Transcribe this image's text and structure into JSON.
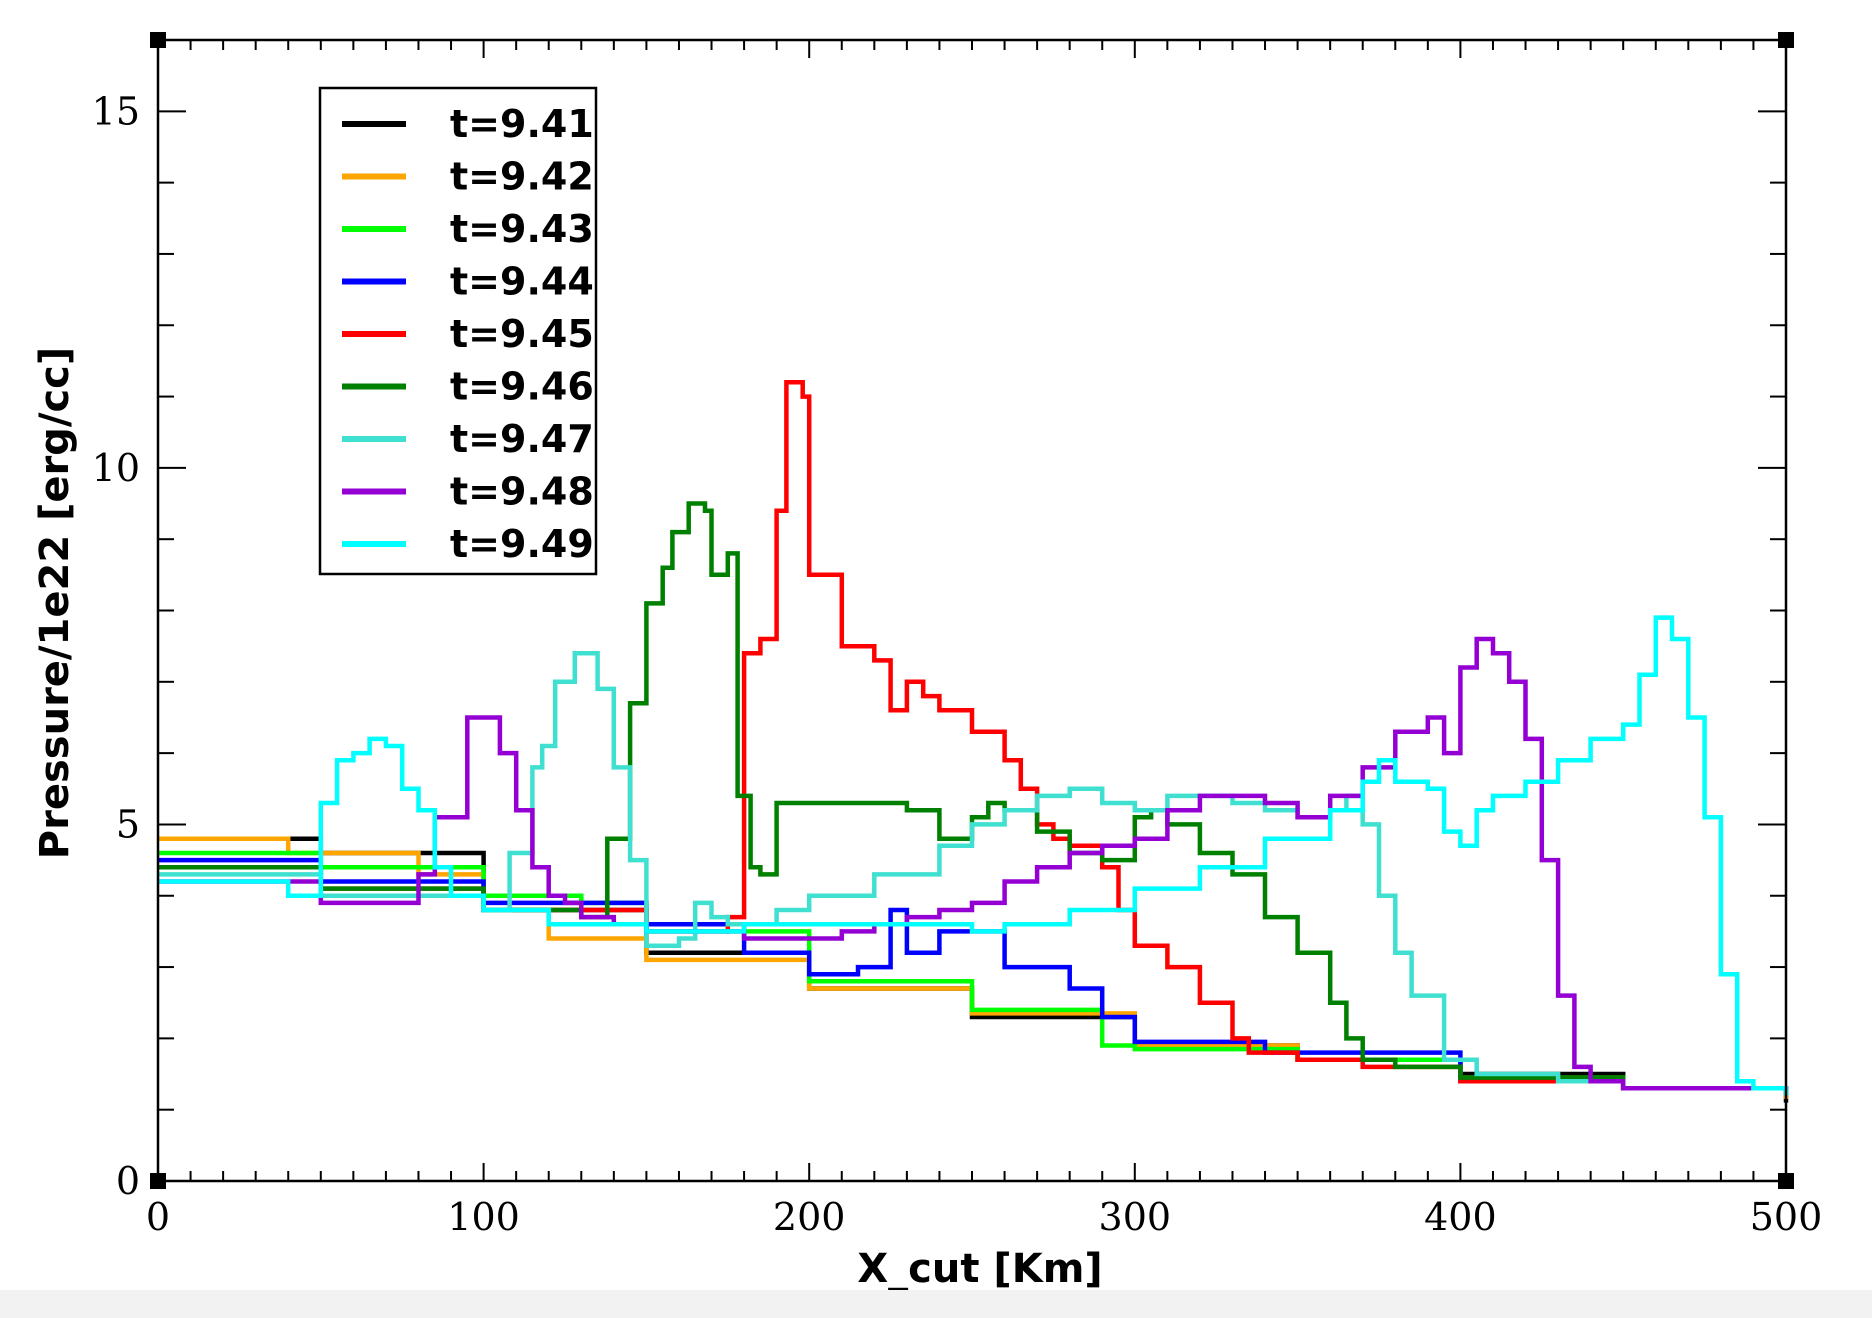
{
  "chart_data": {
    "type": "line",
    "title": "",
    "xlabel": "X_cut [Km]",
    "ylabel": "Pressure/1e22 [erg/cc]",
    "xlim": [
      0,
      500
    ],
    "ylim": [
      0,
      16
    ],
    "x_ticks": [
      "0",
      "100",
      "200",
      "300",
      "400",
      "500"
    ],
    "y_ticks": [
      "0",
      "5",
      "10",
      "15"
    ],
    "grid": false,
    "legend_position": "top-left",
    "series": [
      {
        "name": "t=9.41",
        "color": "#000000",
        "x": [
          0,
          30,
          50,
          100,
          150,
          200,
          250,
          300,
          350,
          400,
          450,
          500
        ],
        "y": [
          4.8,
          4.8,
          4.6,
          3.8,
          3.2,
          2.7,
          2.3,
          1.9,
          1.7,
          1.5,
          1.3,
          1.1
        ]
      },
      {
        "name": "t=9.42",
        "color": "#FFA500",
        "x": [
          0,
          40,
          80,
          100,
          120,
          150,
          200,
          250,
          300,
          350,
          400,
          450,
          500
        ],
        "y": [
          4.8,
          4.6,
          4.3,
          3.8,
          3.4,
          3.1,
          2.7,
          2.35,
          1.9,
          1.7,
          1.45,
          1.3,
          1.15
        ]
      },
      {
        "name": "t=9.43",
        "color": "#00FF00",
        "x": [
          0,
          50,
          100,
          130,
          150,
          200,
          250,
          290,
          300,
          350,
          400,
          450,
          500
        ],
        "y": [
          4.6,
          4.4,
          4.0,
          3.9,
          3.5,
          2.8,
          2.4,
          1.9,
          1.85,
          1.7,
          1.45,
          1.3,
          1.2
        ]
      },
      {
        "name": "t=9.44",
        "color": "#0000FF",
        "x": [
          0,
          50,
          100,
          150,
          180,
          200,
          215,
          225,
          230,
          240,
          260,
          270,
          280,
          290,
          300,
          340,
          400,
          450,
          500
        ],
        "y": [
          4.5,
          4.2,
          3.9,
          3.6,
          3.2,
          2.9,
          3.0,
          3.8,
          3.2,
          3.5,
          3.0,
          3.0,
          2.7,
          2.3,
          1.95,
          1.8,
          1.4,
          1.3,
          1.2
        ]
      },
      {
        "name": "t=9.45",
        "color": "#FF0000",
        "x": [
          0,
          50,
          100,
          150,
          170,
          175,
          180,
          185,
          190,
          193,
          198,
          200,
          210,
          220,
          225,
          230,
          235,
          240,
          250,
          260,
          265,
          270,
          275,
          280,
          290,
          295,
          300,
          310,
          320,
          330,
          335,
          350,
          370,
          400,
          450,
          500
        ],
        "y": [
          4.4,
          4.1,
          3.8,
          3.5,
          3.5,
          3.7,
          7.4,
          7.6,
          9.4,
          11.2,
          11.0,
          8.5,
          7.5,
          7.3,
          6.6,
          7.0,
          6.8,
          6.6,
          6.3,
          5.9,
          5.5,
          5.0,
          4.8,
          4.7,
          4.4,
          3.8,
          3.3,
          3.0,
          2.5,
          2.0,
          1.8,
          1.7,
          1.6,
          1.4,
          1.3,
          1.3
        ]
      },
      {
        "name": "t=9.46",
        "color": "#008000",
        "x": [
          0,
          50,
          100,
          130,
          138,
          145,
          150,
          155,
          158,
          163,
          168,
          170,
          175,
          178,
          182,
          185,
          190,
          200,
          220,
          230,
          240,
          250,
          255,
          260,
          270,
          280,
          290,
          300,
          305,
          310,
          320,
          330,
          340,
          350,
          360,
          365,
          370,
          380,
          400,
          450,
          500
        ],
        "y": [
          4.4,
          4.1,
          3.8,
          3.7,
          4.8,
          6.7,
          8.1,
          8.6,
          9.1,
          9.5,
          9.4,
          8.5,
          8.8,
          5.4,
          4.4,
          4.3,
          5.3,
          5.3,
          5.3,
          5.2,
          4.8,
          5.1,
          5.3,
          5.2,
          4.9,
          4.6,
          4.5,
          5.1,
          5.2,
          5.0,
          4.6,
          4.3,
          3.7,
          3.2,
          2.5,
          2.0,
          1.7,
          1.6,
          1.45,
          1.3,
          1.2
        ]
      },
      {
        "name": "t=9.47",
        "color": "#40E0D0",
        "x": [
          0,
          50,
          100,
          108,
          115,
          118,
          122,
          128,
          135,
          140,
          145,
          150,
          160,
          165,
          170,
          175,
          190,
          200,
          220,
          240,
          250,
          260,
          270,
          280,
          290,
          300,
          310,
          320,
          330,
          340,
          350,
          360,
          365,
          370,
          375,
          380,
          385,
          395,
          405,
          430,
          450,
          500
        ],
        "y": [
          4.3,
          4.0,
          3.8,
          4.6,
          5.8,
          6.1,
          7.0,
          7.4,
          6.9,
          5.8,
          4.5,
          3.3,
          3.4,
          3.9,
          3.7,
          3.6,
          3.8,
          4.0,
          4.3,
          4.7,
          5.0,
          5.2,
          5.4,
          5.5,
          5.3,
          5.2,
          5.4,
          5.4,
          5.3,
          5.2,
          5.1,
          5.2,
          5.4,
          5.0,
          4.0,
          3.2,
          2.6,
          1.7,
          1.5,
          1.4,
          1.3,
          1.2
        ]
      },
      {
        "name": "t=9.48",
        "color": "#9400D3",
        "x": [
          0,
          50,
          70,
          80,
          85,
          95,
          100,
          105,
          110,
          115,
          120,
          125,
          130,
          140,
          150,
          160,
          170,
          180,
          200,
          210,
          220,
          230,
          240,
          250,
          260,
          270,
          280,
          290,
          300,
          310,
          320,
          330,
          340,
          350,
          360,
          370,
          380,
          390,
          395,
          400,
          405,
          410,
          415,
          420,
          425,
          430,
          435,
          440,
          450,
          500
        ],
        "y": [
          4.2,
          3.9,
          3.9,
          4.3,
          5.1,
          6.5,
          6.5,
          6.0,
          5.2,
          4.4,
          4.0,
          3.9,
          3.7,
          3.6,
          3.5,
          3.5,
          3.5,
          3.4,
          3.4,
          3.5,
          3.6,
          3.7,
          3.8,
          3.9,
          4.2,
          4.4,
          4.6,
          4.7,
          4.8,
          5.2,
          5.4,
          5.4,
          5.3,
          5.1,
          5.4,
          5.8,
          6.3,
          6.5,
          6.0,
          7.2,
          7.6,
          7.4,
          7.0,
          6.2,
          4.5,
          2.6,
          1.6,
          1.4,
          1.3,
          1.25
        ]
      },
      {
        "name": "t=9.49",
        "color": "#00FFFF",
        "x": [
          0,
          40,
          50,
          55,
          60,
          65,
          70,
          75,
          80,
          85,
          90,
          100,
          120,
          150,
          180,
          200,
          230,
          250,
          260,
          280,
          300,
          320,
          340,
          360,
          370,
          375,
          380,
          390,
          395,
          400,
          405,
          410,
          420,
          430,
          440,
          450,
          455,
          460,
          465,
          470,
          475,
          480,
          485,
          490,
          500
        ],
        "y": [
          4.2,
          4.0,
          5.3,
          5.9,
          6.0,
          6.2,
          6.1,
          5.5,
          5.2,
          4.4,
          4.0,
          3.8,
          3.6,
          3.5,
          3.6,
          3.6,
          3.6,
          3.5,
          3.6,
          3.8,
          4.1,
          4.4,
          4.8,
          5.2,
          5.6,
          5.9,
          5.6,
          5.5,
          4.9,
          4.7,
          5.2,
          5.4,
          5.6,
          5.9,
          6.2,
          6.4,
          7.1,
          7.9,
          7.6,
          6.5,
          5.1,
          2.9,
          1.4,
          1.3,
          1.2
        ]
      }
    ]
  }
}
